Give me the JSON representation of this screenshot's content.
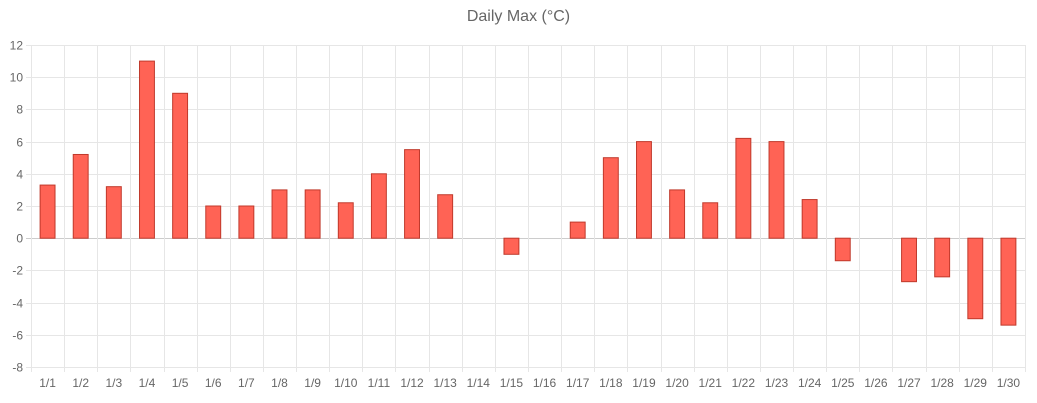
{
  "chart_data": {
    "type": "bar",
    "title": "Daily Max (°C)",
    "xlabel": "",
    "ylabel": "",
    "categories": [
      "1/1",
      "1/2",
      "1/3",
      "1/4",
      "1/5",
      "1/6",
      "1/7",
      "1/8",
      "1/9",
      "1/10",
      "1/11",
      "1/12",
      "1/13",
      "1/14",
      "1/15",
      "1/16",
      "1/17",
      "1/18",
      "1/19",
      "1/20",
      "1/21",
      "1/22",
      "1/23",
      "1/24",
      "1/25",
      "1/26",
      "1/27",
      "1/28",
      "1/29",
      "1/30"
    ],
    "values": [
      3.3,
      5.2,
      3.2,
      11,
      9,
      2,
      2,
      3,
      3,
      2.2,
      4,
      5.5,
      2.7,
      null,
      -1,
      null,
      1,
      5,
      6,
      3,
      2.2,
      6.2,
      6,
      2.4,
      -1.4,
      null,
      -2.7,
      -2.4,
      -5,
      -5.4
    ],
    "ylim": [
      -8,
      12
    ],
    "yticks": [
      -8,
      -6,
      -4,
      -2,
      0,
      2,
      4,
      6,
      8,
      10,
      12
    ],
    "grid": true,
    "legend": "none",
    "colors": {
      "bar_fill": "#ff6355",
      "bar_stroke": "#c0392b",
      "grid": "#e6e6e6",
      "zero_line": "#cccccc",
      "text": "#666666"
    }
  }
}
